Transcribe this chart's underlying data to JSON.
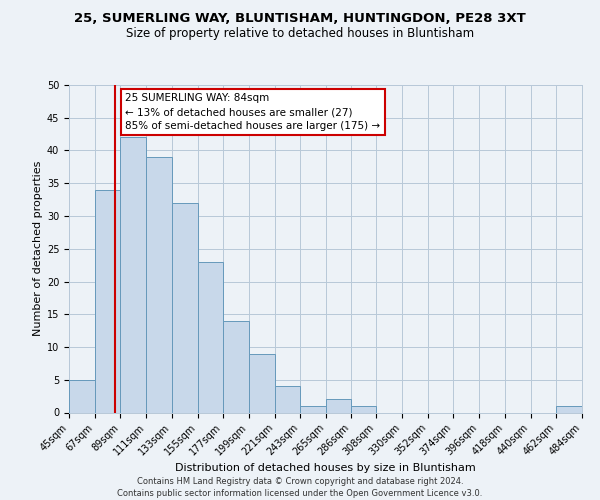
{
  "title": "25, SUMERLING WAY, BLUNTISHAM, HUNTINGDON, PE28 3XT",
  "subtitle": "Size of property relative to detached houses in Bluntisham",
  "xlabel": "Distribution of detached houses by size in Bluntisham",
  "ylabel": "Number of detached properties",
  "bin_edges": [
    45,
    67,
    89,
    111,
    133,
    155,
    177,
    199,
    221,
    243,
    265,
    286,
    308,
    330,
    352,
    374,
    396,
    418,
    440,
    462,
    484
  ],
  "bin_counts": [
    5,
    34,
    42,
    39,
    32,
    23,
    14,
    9,
    4,
    1,
    2,
    1,
    0,
    0,
    0,
    0,
    0,
    0,
    0,
    1
  ],
  "bar_color": "#c8d8ea",
  "bar_edge_color": "#6699bb",
  "vline_x": 84,
  "vline_color": "#cc0000",
  "ylim": [
    0,
    50
  ],
  "yticks": [
    0,
    5,
    10,
    15,
    20,
    25,
    30,
    35,
    40,
    45,
    50
  ],
  "tick_labels": [
    "45sqm",
    "67sqm",
    "89sqm",
    "111sqm",
    "133sqm",
    "155sqm",
    "177sqm",
    "199sqm",
    "221sqm",
    "243sqm",
    "265sqm",
    "286sqm",
    "308sqm",
    "330sqm",
    "352sqm",
    "374sqm",
    "396sqm",
    "418sqm",
    "440sqm",
    "462sqm",
    "484sqm"
  ],
  "annotation_title": "25 SUMERLING WAY: 84sqm",
  "annotation_line1": "← 13% of detached houses are smaller (27)",
  "annotation_line2": "85% of semi-detached houses are larger (175) →",
  "annotation_box_color": "#ffffff",
  "annotation_box_edge_color": "#cc0000",
  "footer_line1": "Contains HM Land Registry data © Crown copyright and database right 2024.",
  "footer_line2": "Contains public sector information licensed under the Open Government Licence v3.0.",
  "bg_color": "#edf2f7",
  "grid_color": "#b8c8d8",
  "title_fontsize": 9.5,
  "subtitle_fontsize": 8.5,
  "axis_label_fontsize": 8,
  "tick_fontsize": 7,
  "footer_fontsize": 6,
  "annotation_fontsize": 7.5
}
